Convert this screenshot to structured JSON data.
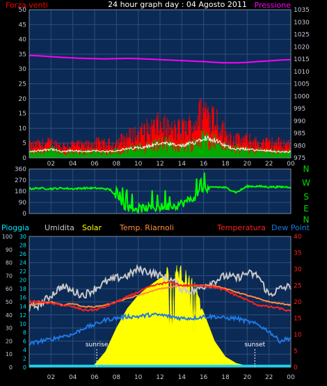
{
  "header": {
    "title": "24 hour graph day : 04 Agosto 2011",
    "left_label": "Forza venti",
    "right_label": "Pressione"
  },
  "x_ticks": [
    "02",
    "04",
    "06",
    "08",
    "10",
    "12",
    "14",
    "16",
    "18",
    "20",
    "22",
    "00"
  ],
  "colors": {
    "background": "#000000",
    "plot_bg": "#0b2a55",
    "grid": "#2f4f7f",
    "wind_gust": "#ff0000",
    "wind_avg": "#00aa00",
    "wind_line": "#ffffff",
    "pressure": "#ff00ff",
    "direction": "#00ff00",
    "rain": "#00e5ff",
    "humidity": "#c8c8c8",
    "solar": "#ffff00",
    "temp_riarnoli": "#ff8c40",
    "temperature": "#ff2020",
    "dew_point": "#1e78e6",
    "compass": "#00dd00"
  },
  "chart_data": [
    {
      "type": "line",
      "name": "wind-pressure",
      "title": "24 hour graph day : 04 Agosto 2011",
      "ylabel_left": "Forza venti",
      "ylabel_right": "Pressione",
      "ylim_left": [
        0,
        50
      ],
      "ylim_right": [
        975,
        1035
      ],
      "yticks_left": [
        "0",
        "5",
        "10",
        "15",
        "20",
        "25",
        "30",
        "35",
        "40",
        "45",
        "50"
      ],
      "yticks_right": [
        "975",
        "980",
        "985",
        "990",
        "995",
        "1000",
        "1005",
        "1010",
        "1015",
        "1020",
        "1025",
        "1030",
        "1035"
      ],
      "x_hours": [
        0,
        1,
        2,
        3,
        4,
        5,
        6,
        7,
        8,
        9,
        10,
        11,
        12,
        13,
        14,
        15,
        16,
        17,
        18,
        19,
        20,
        21,
        22,
        23,
        24
      ],
      "series": [
        {
          "name": "Pressione",
          "axis": "right",
          "values": [
            1016.5,
            1016.3,
            1016,
            1015.7,
            1015.5,
            1015.3,
            1015.2,
            1015.1,
            1015.2,
            1015.3,
            1015.2,
            1015,
            1014.8,
            1014.6,
            1014.4,
            1014.2,
            1014,
            1013.7,
            1013.5,
            1013.5,
            1013.7,
            1014,
            1014.3,
            1014.6,
            1014.8
          ]
        },
        {
          "name": "gust",
          "axis": "left",
          "values": [
            4,
            4.5,
            5,
            4,
            4.5,
            4,
            5,
            4.5,
            5,
            7,
            8,
            9.5,
            11,
            9,
            9.5,
            11,
            16,
            14,
            8,
            6,
            6,
            5,
            5,
            5,
            4.5
          ]
        },
        {
          "name": "average",
          "axis": "left",
          "values": [
            2,
            2.5,
            3,
            2,
            2.5,
            2,
            2.5,
            2,
            2.5,
            3,
            3.5,
            4,
            5,
            4.5,
            4,
            5,
            7,
            6,
            4,
            3,
            3,
            2.5,
            2.5,
            2,
            2
          ]
        }
      ]
    },
    {
      "type": "line",
      "name": "wind-direction",
      "ylim": [
        0,
        360
      ],
      "yticks": [
        "0",
        "90",
        "180",
        "270",
        "360"
      ],
      "compass_labels": [
        "N",
        "W",
        "S",
        "E",
        "N"
      ],
      "x_hours": [
        0,
        1,
        2,
        3,
        4,
        5,
        6,
        7,
        7.5,
        8,
        9,
        10,
        11,
        12,
        13,
        14,
        15,
        16,
        17,
        18,
        19,
        20,
        21,
        22,
        23,
        24
      ],
      "series": [
        {
          "name": "direction",
          "values": [
            200,
            205,
            200,
            205,
            200,
            205,
            205,
            200,
            190,
            120,
            50,
            40,
            45,
            50,
            60,
            80,
            120,
            200,
            215,
            210,
            170,
            220,
            220,
            215,
            215,
            215
          ]
        }
      ]
    },
    {
      "type": "area",
      "name": "weather",
      "ylim_left_outer": [
        0,
        100
      ],
      "ylim_left_inner": [
        0,
        30
      ],
      "ylim_right": [
        0,
        40
      ],
      "yticks_left_outer": [
        "0",
        "10",
        "20",
        "30",
        "40",
        "50",
        "60",
        "70",
        "80",
        "90",
        "100"
      ],
      "yticks_left_inner": [
        "0",
        "2",
        "4",
        "6",
        "8",
        "10",
        "12",
        "14",
        "16",
        "18",
        "20",
        "22",
        "24",
        "26",
        "28",
        "30"
      ],
      "yticks_right": [
        "0",
        "5",
        "10",
        "15",
        "20",
        "25",
        "30",
        "35",
        "40"
      ],
      "legend": [
        "Pioggia",
        "Umidita",
        "Solar",
        "Temp. Riarnoli",
        "Temperatura",
        "Dew Point"
      ],
      "annotations": [
        "sunrise",
        "sunset"
      ],
      "sunrise_hour": 6.2,
      "sunset_hour": 20.7,
      "x_hours": [
        0,
        1,
        2,
        3,
        4,
        5,
        6,
        7,
        8,
        9,
        10,
        11,
        12,
        13,
        14,
        15,
        16,
        17,
        18,
        19,
        20,
        21,
        22,
        23,
        24
      ],
      "series": [
        {
          "name": "Umidita",
          "axis": "left_outer",
          "values": [
            45,
            48,
            55,
            62,
            58,
            55,
            60,
            65,
            68,
            70,
            75,
            73,
            70,
            67,
            60,
            58,
            62,
            66,
            70,
            68,
            72,
            70,
            55,
            60,
            62
          ]
        },
        {
          "name": "Solar",
          "axis": "left_outer",
          "values": [
            0,
            0,
            0,
            0,
            0,
            0,
            2,
            12,
            30,
            45,
            55,
            62,
            68,
            72,
            70,
            60,
            42,
            20,
            8,
            3,
            1,
            0,
            0,
            0,
            0
          ]
        },
        {
          "name": "Temp. Riarnoli",
          "axis": "right",
          "values": [
            19,
            19.5,
            20,
            19,
            19.5,
            18.5,
            18.5,
            19,
            20,
            21,
            22,
            23,
            24,
            24.5,
            25,
            25,
            25,
            25,
            24,
            23,
            22,
            21,
            20,
            19.5,
            19
          ]
        },
        {
          "name": "Temperatura",
          "axis": "right",
          "values": [
            20,
            20,
            19.5,
            19,
            18.5,
            17.5,
            17.5,
            18.5,
            20,
            21.5,
            23,
            24.5,
            25.5,
            26,
            25,
            25,
            25,
            24.5,
            23.5,
            22,
            20.5,
            19,
            18.5,
            18,
            17
          ]
        },
        {
          "name": "Dew Point",
          "axis": "right",
          "values": [
            7,
            8,
            8.5,
            9.5,
            10,
            12,
            13,
            14.5,
            15,
            15.5,
            15.5,
            16,
            16,
            15.5,
            15,
            15,
            15.5,
            15.5,
            15,
            15,
            14,
            13,
            11,
            8,
            9
          ]
        },
        {
          "name": "Pioggia",
          "axis": "left_inner",
          "values": [
            0,
            0,
            0,
            0,
            0,
            0,
            0,
            0,
            0,
            0,
            0,
            0,
            0,
            0,
            0,
            0,
            0,
            0,
            0,
            0,
            0,
            0,
            0,
            0,
            0
          ]
        }
      ]
    }
  ]
}
